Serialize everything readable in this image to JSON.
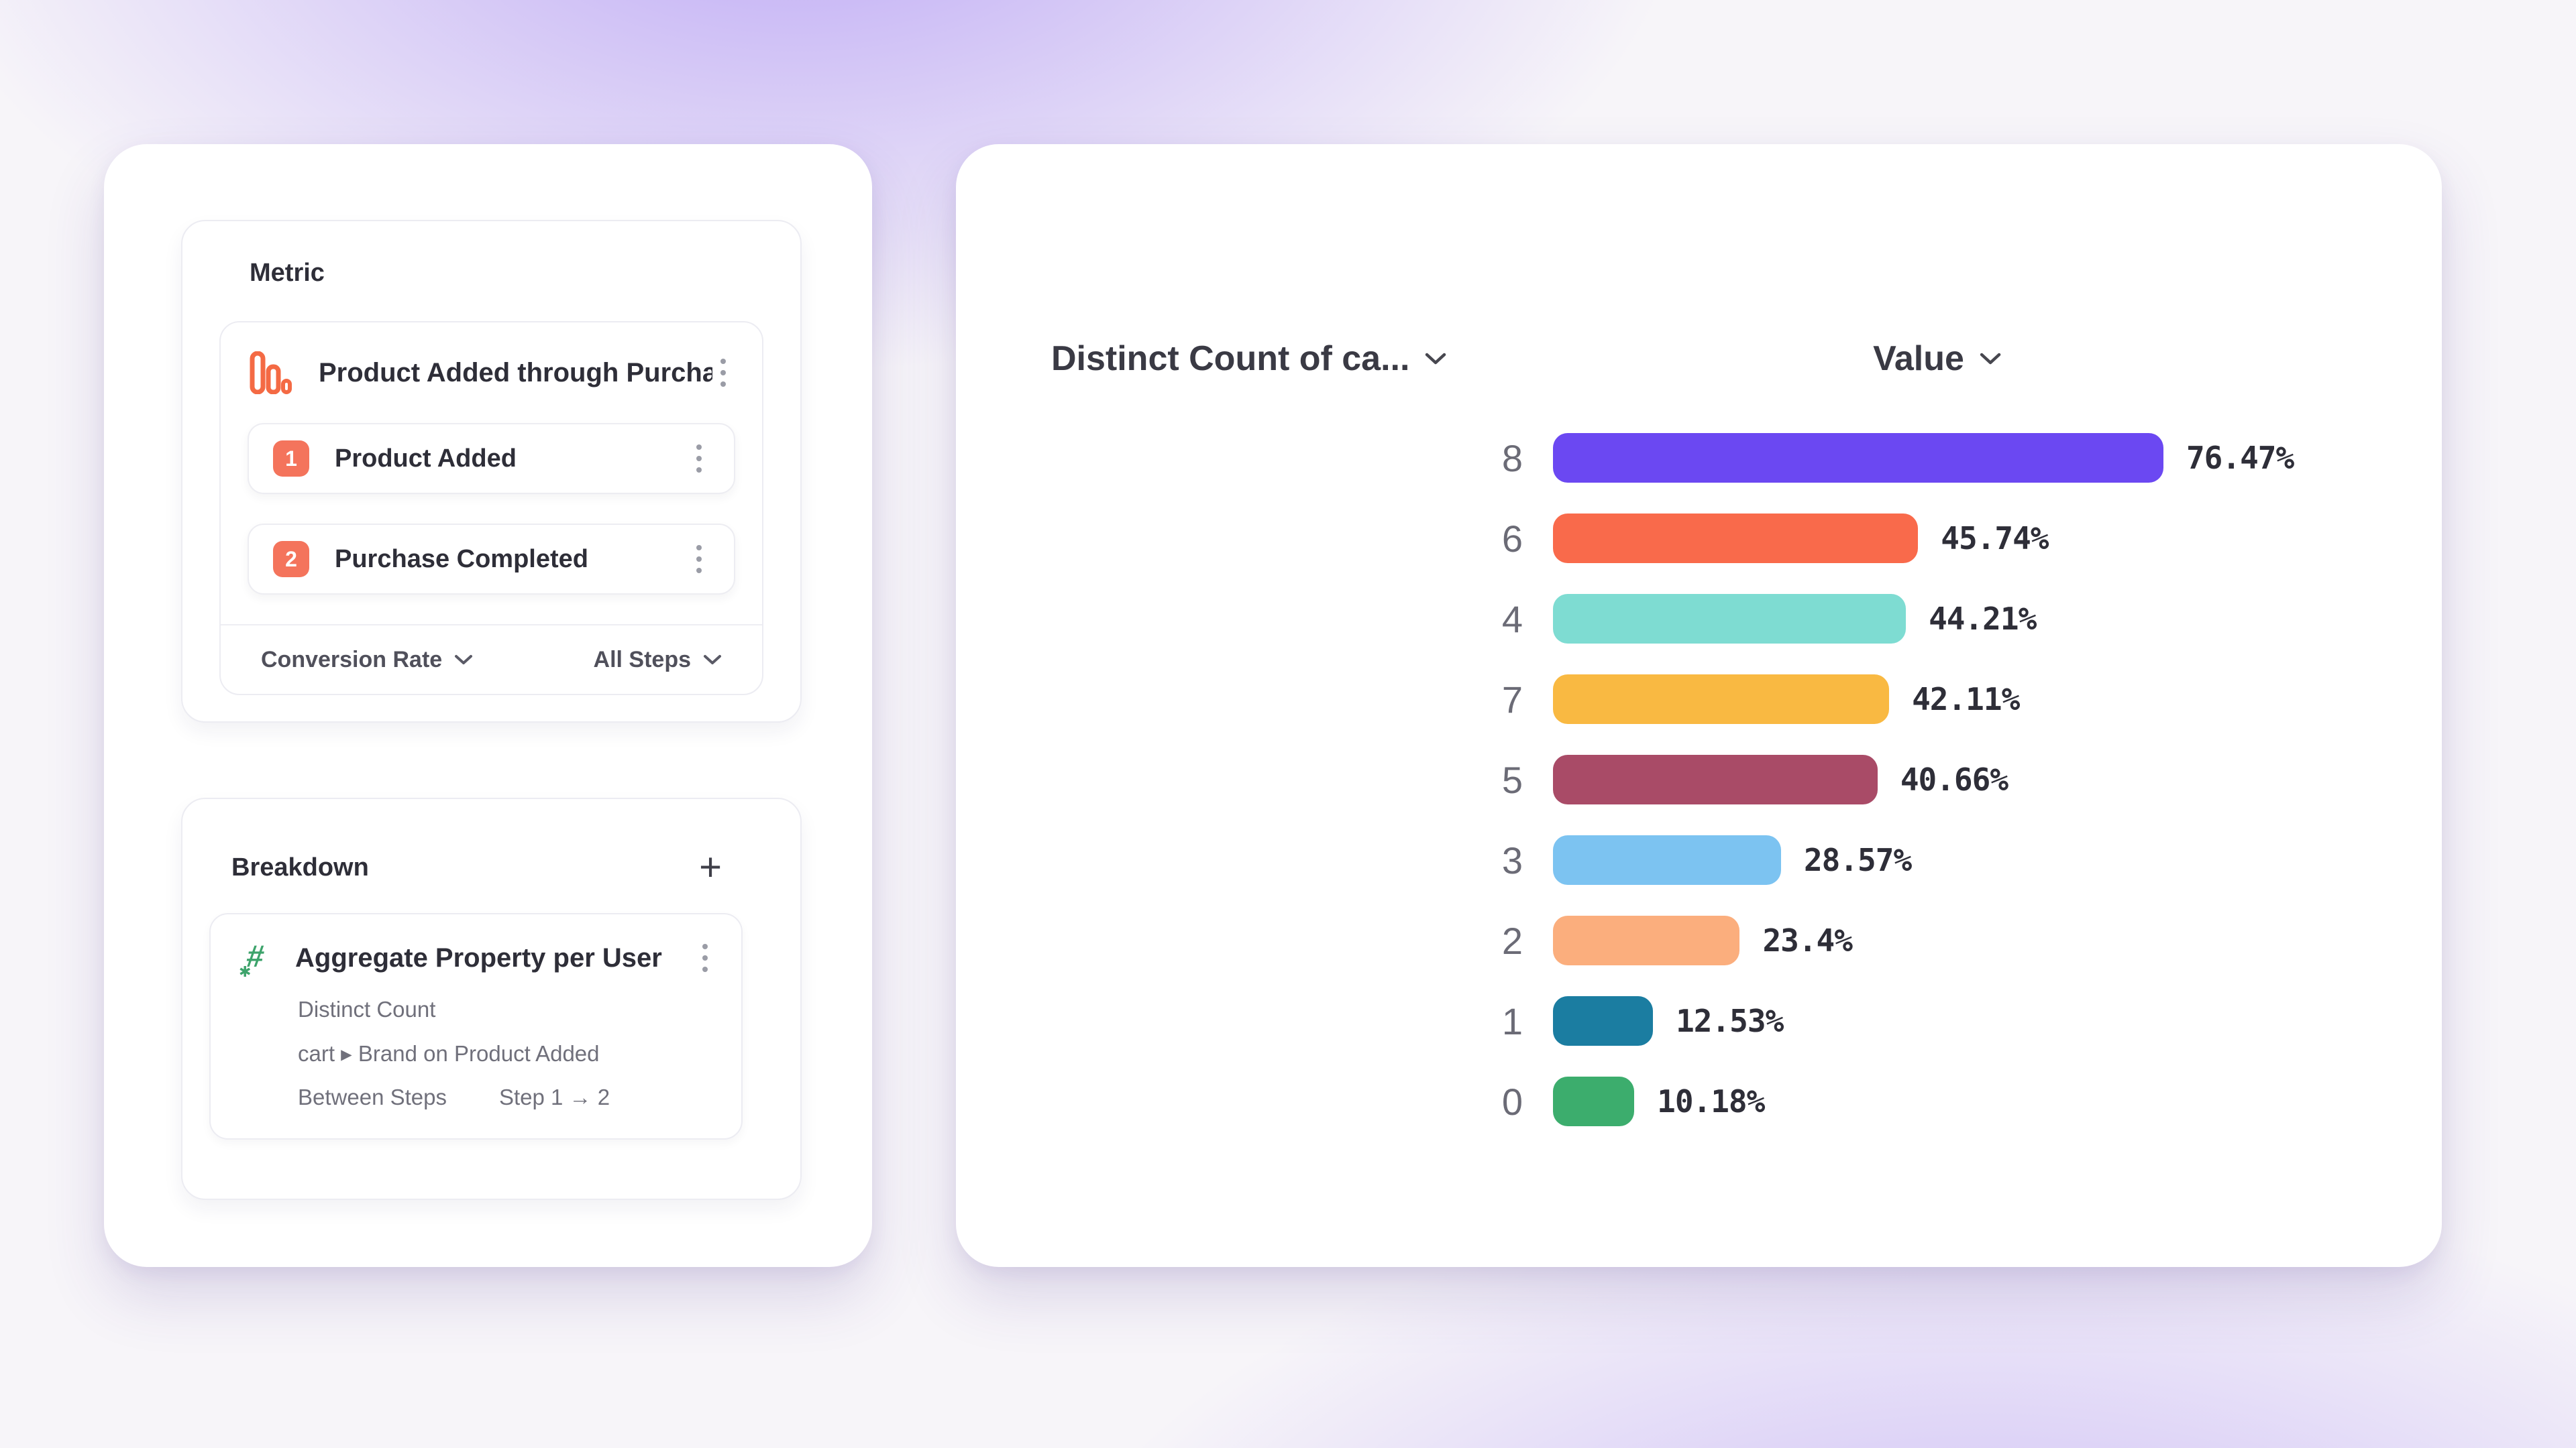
{
  "left_panel": {
    "metric": {
      "title": "Metric",
      "funnel": {
        "title": "Product Added through Purcha...",
        "steps": [
          {
            "index": "1",
            "label": "Product Added"
          },
          {
            "index": "2",
            "label": "Purchase Completed"
          }
        ],
        "footer": {
          "left": "Conversion Rate",
          "right": "All Steps"
        }
      }
    },
    "breakdown": {
      "title": "Breakdown",
      "add_label": "+",
      "item": {
        "title": "Aggregate Property per User",
        "rows": [
          "Distinct Count",
          "cart ▸ Brand on Product Added"
        ],
        "between_label": "Between Steps",
        "step_range": "Step 1 → 2"
      }
    }
  },
  "chart_data": {
    "type": "bar",
    "orientation": "horizontal",
    "col_headers": [
      "Distinct Count of ca...",
      "Value"
    ],
    "categories": [
      "8",
      "6",
      "4",
      "7",
      "5",
      "3",
      "2",
      "1",
      "0"
    ],
    "values": [
      76.47,
      45.74,
      44.21,
      42.11,
      40.66,
      28.57,
      23.4,
      12.53,
      10.18
    ],
    "value_labels": [
      "76.47%",
      "45.74%",
      "44.21%",
      "42.11%",
      "40.66%",
      "28.57%",
      "23.4%",
      "12.53%",
      "10.18%"
    ],
    "bar_colors": [
      "#6B48F2",
      "#F96A4B",
      "#7EDCD2",
      "#F9B942",
      "#A94B67",
      "#7CC3F1",
      "#FBAE7D",
      "#1B7DA1",
      "#3CAD6D"
    ],
    "xlim": [
      0,
      100
    ],
    "grid": false,
    "legend": null
  },
  "colors": {
    "accent_coral": "#F4745C",
    "funnel_icon_orange": "#F46A44",
    "hash_icon_green": "#3DA36B",
    "background_purple": "#8964F0"
  },
  "icons": {
    "hash_glyph": "#",
    "star_glyph": "✱"
  }
}
